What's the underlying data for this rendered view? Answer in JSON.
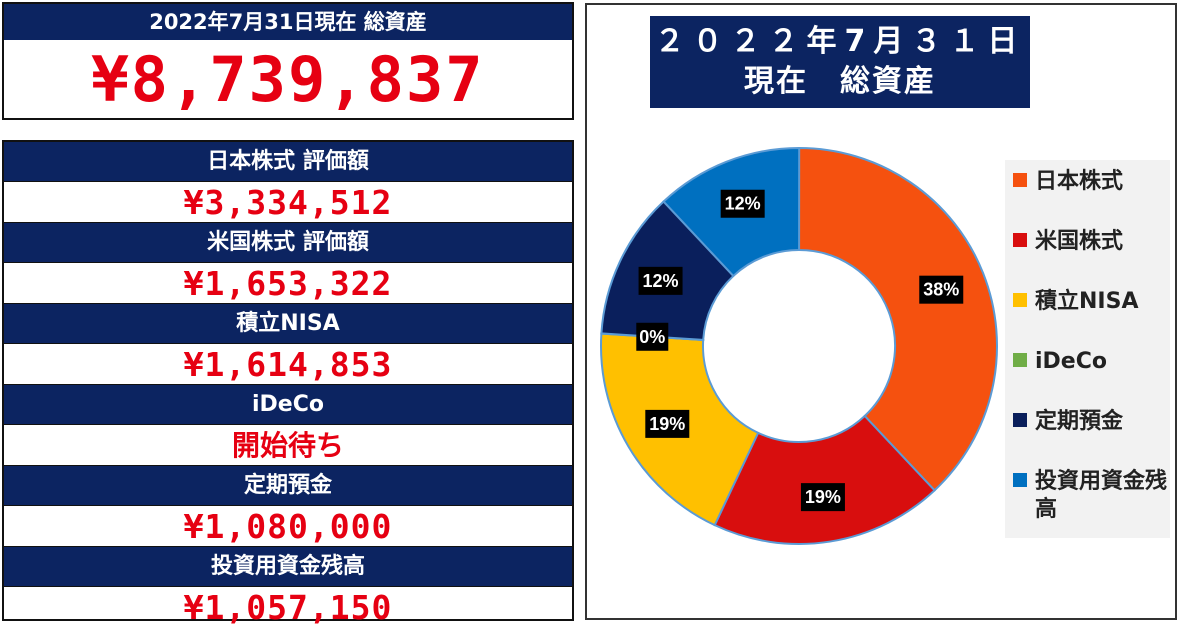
{
  "summary": {
    "header": "2022年7月31日現在 総資産",
    "total": "¥8,739,837"
  },
  "items": [
    {
      "label": "日本株式 評価額",
      "value": "¥3,334,512"
    },
    {
      "label": "米国株式 評価額",
      "value": "¥1,653,322"
    },
    {
      "label": "積立NISA",
      "value": "¥1,614,853"
    },
    {
      "label": "iDeCo",
      "value": "開始待ち"
    },
    {
      "label": "定期預金",
      "value": "¥1,080,000"
    },
    {
      "label": "投資用資金残高",
      "value": "¥1,057,150"
    }
  ],
  "chart_data": {
    "type": "donut",
    "title_line1": "２０２２年7月３１日",
    "title_line2": "現在　総資産",
    "series": [
      {
        "name": "日本株式",
        "percent": 38,
        "label": "38%",
        "color": "#f5510f"
      },
      {
        "name": "米国株式",
        "percent": 19,
        "label": "19%",
        "color": "#d80e0e"
      },
      {
        "name": "積立NISA",
        "percent": 19,
        "label": "19%",
        "color": "#ffc000"
      },
      {
        "name": "iDeCo",
        "percent": 0,
        "label": "0%",
        "color": "#70ad47"
      },
      {
        "name": "定期預金",
        "percent": 12,
        "label": "12%",
        "color": "#0a1f5c"
      },
      {
        "name": "投資用資金残高",
        "percent": 12,
        "label": "12%",
        "color": "#0070c0"
      }
    ],
    "legend_position": "right"
  }
}
